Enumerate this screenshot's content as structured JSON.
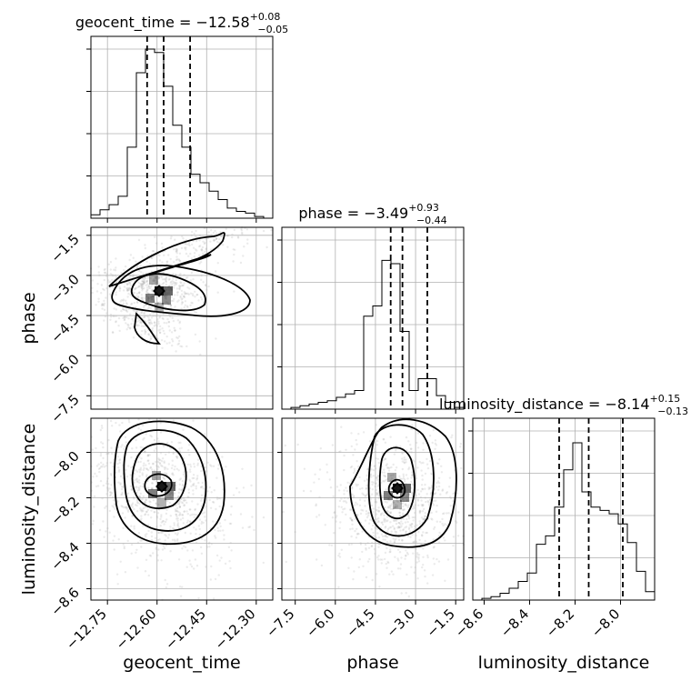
{
  "chart_data": {
    "type": "corner",
    "parameters": [
      {
        "name": "geocent_time",
        "axis_label": "geocent_time",
        "title": {
          "prefix": "geocent_time = −12.58",
          "sup": "+0.08",
          "sub": "−0.05"
        },
        "quantiles": [
          -12.63,
          -12.58,
          -12.5
        ],
        "range": [
          -12.8,
          -12.25
        ],
        "ticks": [
          -12.75,
          -12.6,
          -12.45,
          -12.3
        ],
        "tick_labels": [
          "−12.75",
          "−12.60",
          "−12.45",
          "−12.30"
        ],
        "hist": {
          "edges_start": -12.8,
          "bin_width": 0.0275,
          "counts": [
            0.02,
            0.05,
            0.08,
            0.13,
            0.42,
            0.86,
            1.0,
            0.98,
            0.78,
            0.55,
            0.42,
            0.26,
            0.21,
            0.16,
            0.11,
            0.06,
            0.04,
            0.03,
            0.01,
            0.0
          ]
        }
      },
      {
        "name": "phase",
        "axis_label": "phase",
        "title": {
          "prefix": "phase = −3.49",
          "sup": "+0.93",
          "sub": "−0.44"
        },
        "quantiles": [
          -3.93,
          -3.49,
          -2.56
        ],
        "range": [
          -8.0,
          -1.2
        ],
        "ticks": [
          -7.5,
          -6.0,
          -4.5,
          -3.0,
          -1.5
        ],
        "tick_labels": [
          "−7.5",
          "−6.0",
          "−4.5",
          "−3.0",
          "−1.5"
        ],
        "hist": {
          "edges_start": -8.0,
          "bin_width": 0.34,
          "counts": [
            0.0,
            0.01,
            0.02,
            0.03,
            0.04,
            0.05,
            0.07,
            0.09,
            0.11,
            0.55,
            0.61,
            0.88,
            0.86,
            0.46,
            0.11,
            0.18,
            0.18,
            0.08,
            0.04,
            0.01
          ]
        }
      },
      {
        "name": "luminosity_distance",
        "axis_label": "luminosity_distance",
        "title": {
          "prefix": "luminosity_distance = −8.14",
          "sup": "+0.15",
          "sub": "−0.13"
        },
        "quantiles": [
          -8.27,
          -8.14,
          -7.99
        ],
        "range": [
          -8.65,
          -7.85
        ],
        "ticks": [
          -8.6,
          -8.4,
          -8.2,
          -8.0
        ],
        "tick_labels": [
          "−8.6",
          "−8.4",
          "−8.2",
          "−8.0"
        ],
        "hist": {
          "edges_start": -8.65,
          "bin_width": 0.04,
          "counts": [
            0.0,
            0.01,
            0.02,
            0.04,
            0.07,
            0.11,
            0.16,
            0.33,
            0.38,
            0.55,
            0.77,
            0.93,
            0.64,
            0.55,
            0.53,
            0.51,
            0.45,
            0.34,
            0.17,
            0.05
          ]
        }
      }
    ],
    "pair_panels": [
      {
        "x": "geocent_time",
        "y": "phase"
      },
      {
        "x": "geocent_time",
        "y": "luminosity_distance"
      },
      {
        "x": "phase",
        "y": "luminosity_distance"
      }
    ],
    "grid": true,
    "colors": {
      "lines": "#000000",
      "scatter": "#808080"
    }
  }
}
